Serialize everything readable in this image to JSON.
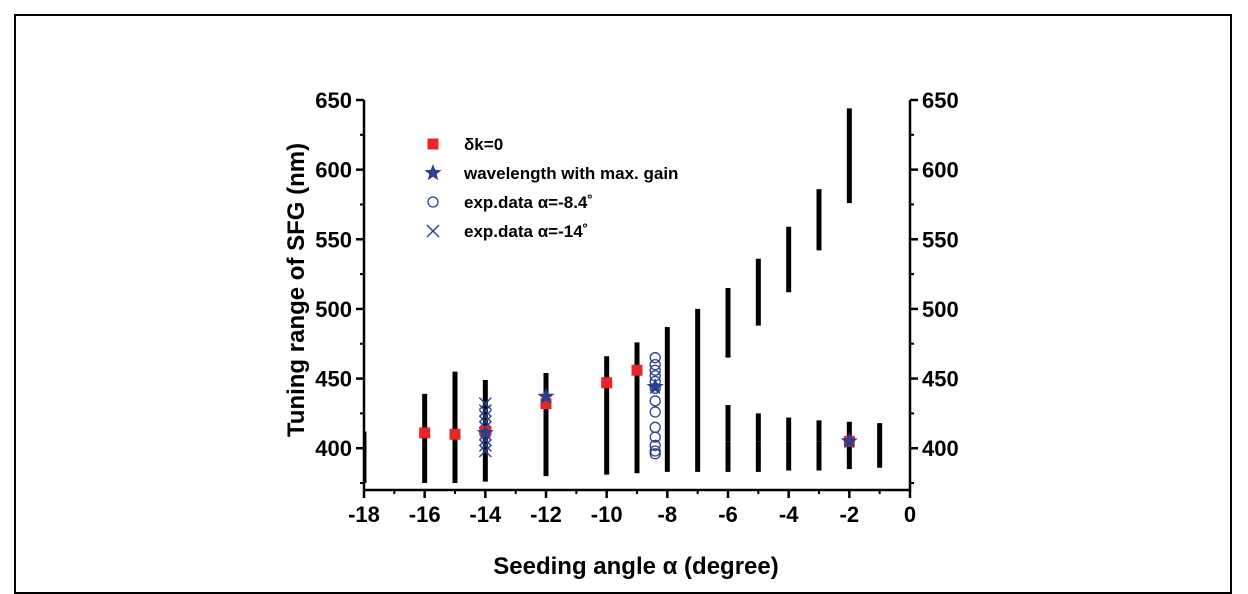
{
  "chart_data": {
    "type": "scatter",
    "xlabel": "Seeding angle α (degree)",
    "ylabel": "Tuning range of SFG (nm)",
    "xlim": [
      -18,
      0
    ],
    "ylim": [
      370,
      650
    ],
    "x_ticks": [
      -18,
      -16,
      -14,
      -12,
      -10,
      -8,
      -6,
      -4,
      -2,
      0
    ],
    "y_ticks": [
      400,
      450,
      500,
      550,
      600,
      650
    ],
    "right_axis_ticks": [
      400,
      450,
      500,
      550,
      600,
      650
    ],
    "legend_position": "top-left",
    "ranges": [
      {
        "x": -18,
        "ymin": 375,
        "ymax": 412
      },
      {
        "x": -16,
        "ymin": 375,
        "ymax": 439
      },
      {
        "x": -15,
        "ymin": 375,
        "ymax": 455
      },
      {
        "x": -14,
        "ymin": 376,
        "ymax": 449
      },
      {
        "x": -12,
        "ymin": 380,
        "ymax": 454
      },
      {
        "x": -10,
        "ymin": 381,
        "ymax": 466
      },
      {
        "x": -9,
        "ymin": 382,
        "ymax": 476
      },
      {
        "x": -8,
        "ymin": 383,
        "ymax": 487
      },
      {
        "x": -7,
        "ymin": 383,
        "ymax": 500
      },
      {
        "x": -6,
        "ymin": 383,
        "ymax": 405
      },
      {
        "x": -6,
        "ymin": 465,
        "ymax": 515
      },
      {
        "x": -5,
        "ymin": 383,
        "ymax": 405
      },
      {
        "x": -5,
        "ymin": 488,
        "ymax": 536
      },
      {
        "x": -4,
        "ymin": 384,
        "ymax": 405
      },
      {
        "x": -4,
        "ymin": 512,
        "ymax": 559
      },
      {
        "x": -3,
        "ymin": 384,
        "ymax": 405
      },
      {
        "x": -3,
        "ymin": 542,
        "ymax": 586
      },
      {
        "x": -2,
        "ymin": 385,
        "ymax": 405
      },
      {
        "x": -2,
        "ymin": 576,
        "ymax": 644
      },
      {
        "x": -1,
        "ymin": 386,
        "ymax": 418
      },
      {
        "x": -6,
        "ymin": 405,
        "ymax": 431
      },
      {
        "x": -5,
        "ymin": 405,
        "ymax": 425
      },
      {
        "x": -4,
        "ymin": 405,
        "ymax": 422
      },
      {
        "x": -3,
        "ymin": 405,
        "ymax": 420
      },
      {
        "x": -2,
        "ymin": 405,
        "ymax": 419
      }
    ],
    "series": [
      {
        "name": "δk=0",
        "marker": "square",
        "color": "#e8262a",
        "points": [
          [
            -16,
            411
          ],
          [
            -15,
            410
          ],
          [
            -14,
            412
          ],
          [
            -12,
            432
          ],
          [
            -10,
            447
          ],
          [
            -9,
            456
          ],
          [
            -2,
            405
          ]
        ]
      },
      {
        "name": "wavelength with max. gain",
        "marker": "star",
        "color": "#2b3f8f",
        "points": [
          [
            -14,
            411
          ],
          [
            -12,
            437
          ],
          [
            -8.4,
            444
          ],
          [
            -2,
            405
          ]
        ]
      },
      {
        "name": "exp.data α=-8.4˚",
        "marker": "circle",
        "color": "#2b3f8f",
        "points": [
          [
            -8.4,
            465
          ],
          [
            -8.4,
            460
          ],
          [
            -8.4,
            456
          ],
          [
            -8.4,
            452
          ],
          [
            -8.4,
            448
          ],
          [
            -8.4,
            443
          ],
          [
            -8.4,
            434
          ],
          [
            -8.4,
            426
          ],
          [
            -8.4,
            415
          ],
          [
            -8.4,
            408
          ],
          [
            -8.4,
            402
          ],
          [
            -8.4,
            398
          ],
          [
            -8.4,
            396
          ]
        ]
      },
      {
        "name": "exp.data α=-14˚",
        "marker": "x",
        "color": "#2b3f8f",
        "points": [
          [
            -14,
            432
          ],
          [
            -14,
            427
          ],
          [
            -14,
            423
          ],
          [
            -14,
            419
          ],
          [
            -14,
            415
          ],
          [
            -14,
            410
          ],
          [
            -14,
            406
          ],
          [
            -14,
            402
          ],
          [
            -14,
            398
          ]
        ]
      }
    ]
  }
}
